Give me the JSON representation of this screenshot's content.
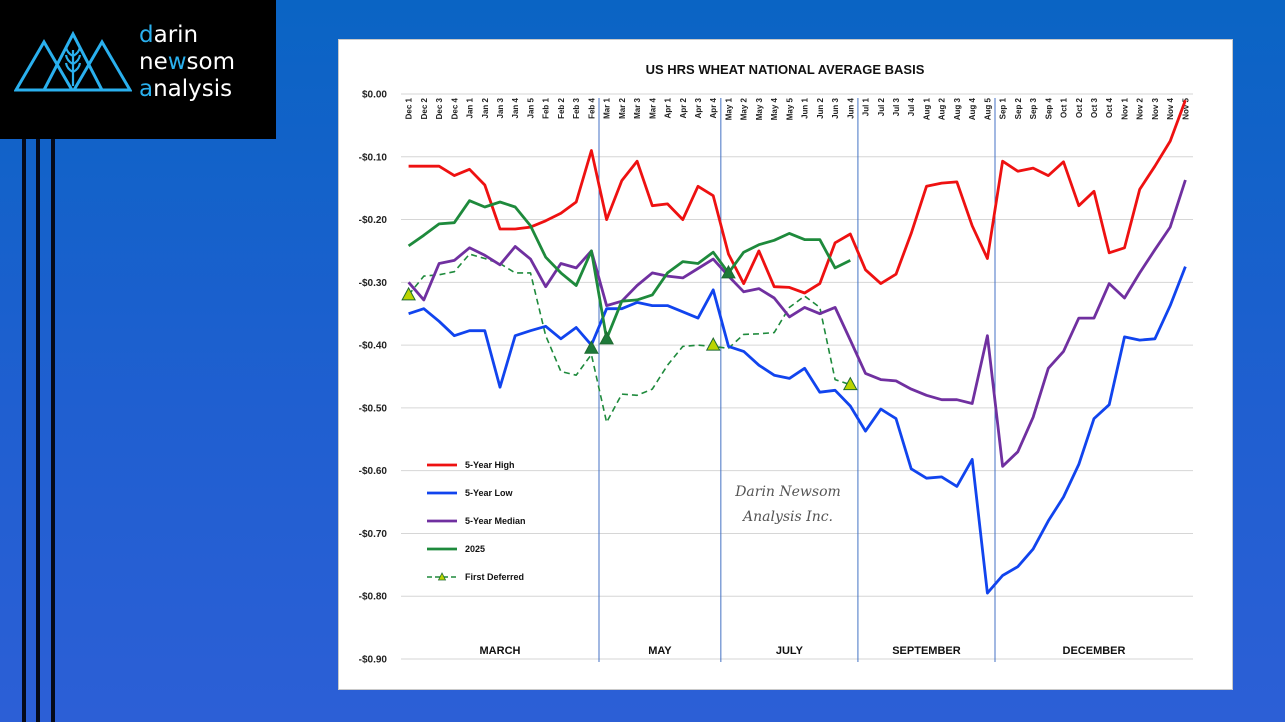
{
  "logo": {
    "lines": [
      {
        "accent": "d",
        "rest": "arin"
      },
      {
        "pre": "ne",
        "accent": "w",
        "rest": "som"
      },
      {
        "accent": "a",
        "rest": "nalysis"
      }
    ],
    "accent_color": "#2ab0ee"
  },
  "chart_data": {
    "type": "line",
    "title": "US HRS WHEAT NATIONAL AVERAGE BASIS",
    "ylim": [
      -0.9,
      0.0
    ],
    "yticks": [
      "$0.00",
      "-$0.10",
      "-$0.20",
      "-$0.30",
      "-$0.40",
      "-$0.50",
      "-$0.60",
      "-$0.70",
      "-$0.80",
      "-$0.90"
    ],
    "x": [
      "Dec 1",
      "Dec 2",
      "Dec 3",
      "Dec 4",
      "Jan 1",
      "Jan 2",
      "Jan 3",
      "Jan 4",
      "Jan 5",
      "Feb 1",
      "Feb 2",
      "Feb 3",
      "Feb 4",
      "Mar 1",
      "Mar 2",
      "Mar 3",
      "Mar 4",
      "Apr 1",
      "Apr 2",
      "Apr 3",
      "Apr 4",
      "May 1",
      "May 2",
      "May 3",
      "May 4",
      "May 5",
      "Jun 1",
      "Jun 2",
      "Jun 3",
      "Jun 4",
      "Jul 1",
      "Jul 2",
      "Jul 3",
      "Jul 4",
      "Aug 1",
      "Aug 2",
      "Aug 3",
      "Aug 4",
      "Aug 5",
      "Sep 1",
      "Sep 2",
      "Sep 3",
      "Sep 4",
      "Oct 1",
      "Oct 2",
      "Oct 3",
      "Oct 4",
      "Nov 1",
      "Nov 2",
      "Nov 3",
      "Nov 4",
      "Nov 5"
    ],
    "segments": [
      {
        "label": "MARCH",
        "end": "Feb 4"
      },
      {
        "label": "MAY",
        "end": "Apr 4"
      },
      {
        "label": "JULY",
        "end": "Jun 4"
      },
      {
        "label": "SEPTEMBER",
        "end": "Aug 5"
      },
      {
        "label": "DECEMBER",
        "end": "Nov 5"
      }
    ],
    "series": [
      {
        "name": "5-Year High",
        "color": "#ee1111",
        "style": "solid",
        "values": [
          -0.115,
          -0.115,
          -0.115,
          -0.13,
          -0.12,
          -0.145,
          -0.215,
          -0.215,
          -0.212,
          -0.202,
          -0.19,
          -0.172,
          -0.09,
          -0.2,
          -0.138,
          -0.107,
          -0.178,
          -0.175,
          -0.2,
          -0.147,
          -0.162,
          -0.255,
          -0.302,
          -0.25,
          -0.307,
          -0.308,
          -0.317,
          -0.302,
          -0.237,
          -0.223,
          -0.28,
          -0.302,
          -0.287,
          -0.222,
          -0.147,
          -0.142,
          -0.14,
          -0.21,
          -0.262,
          -0.107,
          -0.123,
          -0.118,
          -0.13,
          -0.108,
          -0.178,
          -0.155,
          -0.253,
          -0.245,
          -0.152,
          -0.115,
          -0.075,
          -0.01
        ]
      },
      {
        "name": "5-Year Low",
        "color": "#1144ee",
        "style": "solid",
        "values": [
          -0.35,
          -0.342,
          -0.362,
          -0.385,
          -0.377,
          -0.377,
          -0.467,
          -0.385,
          -0.377,
          -0.37,
          -0.39,
          -0.372,
          -0.4,
          -0.342,
          -0.342,
          -0.332,
          -0.337,
          -0.337,
          -0.347,
          -0.357,
          -0.312,
          -0.402,
          -0.41,
          -0.432,
          -0.448,
          -0.453,
          -0.437,
          -0.475,
          -0.472,
          -0.497,
          -0.537,
          -0.502,
          -0.517,
          -0.597,
          -0.612,
          -0.61,
          -0.625,
          -0.582,
          -0.795,
          -0.767,
          -0.753,
          -0.725,
          -0.68,
          -0.642,
          -0.59,
          -0.517,
          -0.495,
          -0.387,
          -0.392,
          -0.39,
          -0.337,
          -0.275
        ]
      },
      {
        "name": "5-Year Median",
        "color": "#7030a0",
        "style": "solid",
        "values": [
          -0.3,
          -0.328,
          -0.27,
          -0.265,
          -0.245,
          -0.257,
          -0.272,
          -0.243,
          -0.263,
          -0.307,
          -0.27,
          -0.277,
          -0.25,
          -0.337,
          -0.33,
          -0.305,
          -0.285,
          -0.29,
          -0.293,
          -0.278,
          -0.263,
          -0.29,
          -0.315,
          -0.31,
          -0.325,
          -0.355,
          -0.34,
          -0.35,
          -0.34,
          -0.392,
          -0.445,
          -0.455,
          -0.457,
          -0.47,
          -0.48,
          -0.487,
          -0.487,
          -0.493,
          -0.385,
          -0.593,
          -0.57,
          -0.515,
          -0.437,
          -0.41,
          -0.357,
          -0.357,
          -0.302,
          -0.325,
          -0.285,
          -0.248,
          -0.212,
          -0.137
        ]
      },
      {
        "name": "2025",
        "color": "#1e8a3c",
        "style": "solid",
        "values": [
          -0.242,
          -0.225,
          -0.207,
          -0.205,
          -0.17,
          -0.18,
          -0.172,
          -0.18,
          -0.21,
          -0.26,
          -0.285,
          -0.305,
          -0.25,
          -0.39,
          -0.33,
          -0.328,
          -0.32,
          -0.285,
          -0.267,
          -0.27,
          -0.252,
          -0.285,
          -0.252,
          -0.24,
          -0.233,
          -0.222,
          -0.232,
          -0.232,
          -0.277,
          -0.265,
          null,
          null,
          null,
          null,
          null,
          null,
          null,
          null,
          null,
          null,
          null,
          null,
          null,
          null,
          null,
          null,
          null,
          null,
          null,
          null,
          null,
          null
        ]
      },
      {
        "name": "First Deferred",
        "color": "#1e8a3c",
        "style": "dashed",
        "values": [
          -0.32,
          -0.29,
          -0.288,
          -0.283,
          -0.255,
          -0.262,
          -0.27,
          -0.285,
          -0.285,
          -0.385,
          -0.442,
          -0.448,
          -0.415,
          -0.523,
          -0.478,
          -0.48,
          -0.47,
          -0.432,
          -0.402,
          -0.4,
          -0.402,
          -0.405,
          -0.383,
          -0.382,
          -0.38,
          -0.34,
          -0.322,
          -0.34,
          -0.455,
          -0.463,
          null,
          null,
          null,
          null,
          null,
          null,
          null,
          null,
          null,
          null,
          null,
          null,
          null,
          null,
          null,
          null,
          null,
          null,
          null,
          null,
          null,
          null
        ]
      }
    ],
    "markers": [
      {
        "x": "Dec 1",
        "y": -0.32,
        "fill": "#bbd400"
      },
      {
        "x": "Feb 4",
        "y": -0.405,
        "fill": "#1e7a3a"
      },
      {
        "x": "Mar 1",
        "y": -0.39,
        "fill": "#1e7a3a"
      },
      {
        "x": "Apr 4",
        "y": -0.4,
        "fill": "#bbd400"
      },
      {
        "x": "May 1",
        "y": -0.285,
        "fill": "#1e7a3a"
      },
      {
        "x": "Jun 4",
        "y": -0.463,
        "fill": "#bbd400"
      }
    ],
    "legend": {
      "position": "lower-left"
    },
    "watermark": [
      "Darin Newsom",
      "Analysis Inc."
    ],
    "grid": true
  }
}
